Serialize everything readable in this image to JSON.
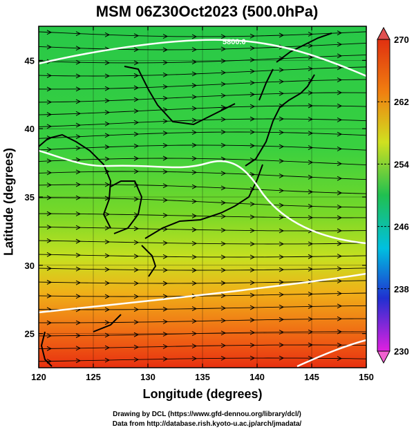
{
  "title": "MSM 06Z30Oct2023 (500.0hPa)",
  "xlabel": "Longitude (degrees)",
  "ylabel": "Latitude  (degrees)",
  "x_ticks": [
    "120",
    "125",
    "130",
    "135",
    "140",
    "145",
    "150"
  ],
  "y_ticks": [
    "25",
    "30",
    "35",
    "40",
    "45"
  ],
  "colorbar_ticks": [
    "270",
    "262",
    "254",
    "246",
    "238",
    "230"
  ],
  "contour_label": "5800.0",
  "credit_line1": "Drawing by DCL (https://www.gfd-dennou.org/library/dcl/)",
  "credit_line2": "Data from http://database.rish.kyoto-u.ac.jp/arch/jmadata/",
  "map_data": {
    "lon_range": [
      120,
      150
    ],
    "lat_range": [
      22.5,
      47.5
    ],
    "colorbar_range": [
      230,
      270
    ],
    "colormap": [
      "#e020e0",
      "#2030d0",
      "#00c0e0",
      "#20c050",
      "#d0e020",
      "#f08010",
      "#e03010"
    ]
  }
}
